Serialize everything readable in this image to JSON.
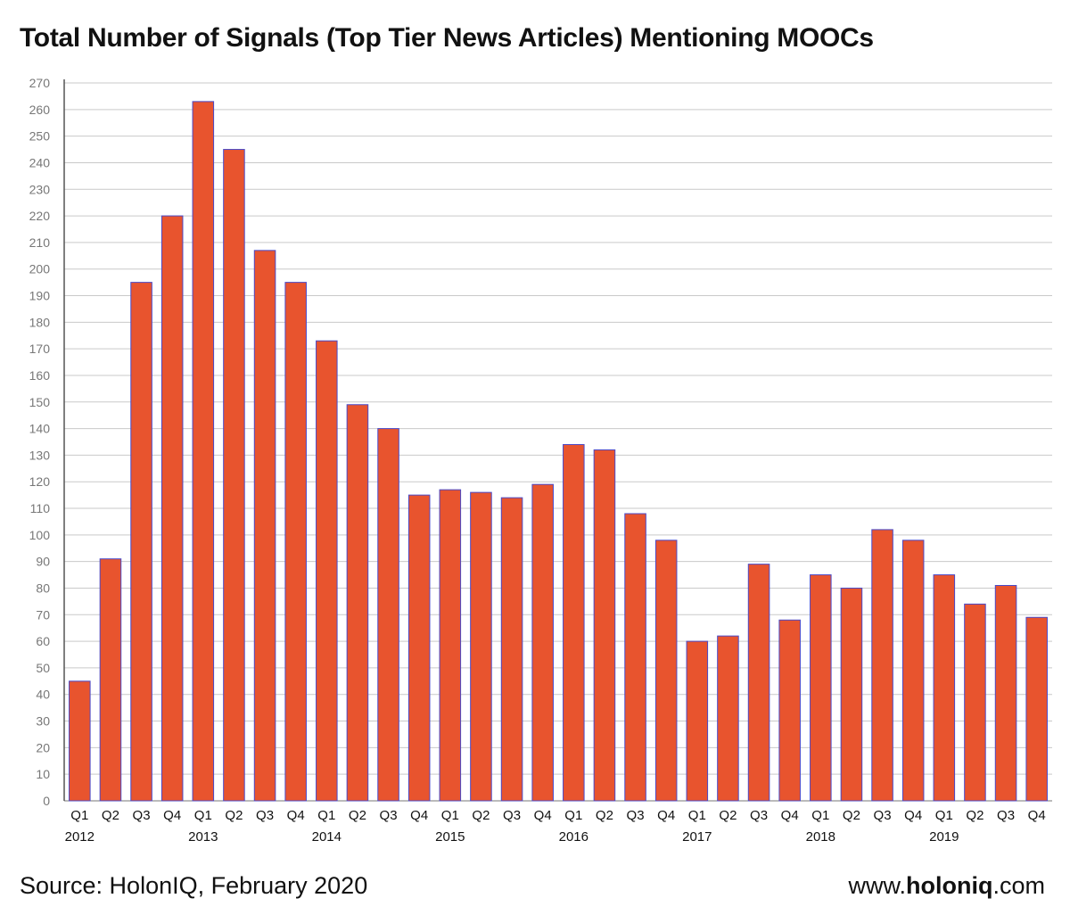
{
  "chart_data": {
    "type": "bar",
    "title": "Total Number of Signals (Top Tier News Articles) Mentioning MOOCs",
    "xlabel": "",
    "ylabel": "",
    "ylim": [
      0,
      270
    ],
    "ytick_step": 10,
    "grid": true,
    "bar_color": "#E8542E",
    "bar_edge_color": "#4a4ac8",
    "categories": [
      "Q1",
      "Q2",
      "Q3",
      "Q4",
      "Q1",
      "Q2",
      "Q3",
      "Q4",
      "Q1",
      "Q2",
      "Q3",
      "Q4",
      "Q1",
      "Q2",
      "Q3",
      "Q4",
      "Q1",
      "Q2",
      "Q3",
      "Q4",
      "Q1",
      "Q2",
      "Q3",
      "Q4",
      "Q1",
      "Q2",
      "Q3",
      "Q4",
      "Q1",
      "Q2",
      "Q3",
      "Q4"
    ],
    "years": [
      "2012",
      "2013",
      "2014",
      "2015",
      "2016",
      "2017",
      "2018",
      "2019"
    ],
    "values": [
      45,
      91,
      195,
      220,
      263,
      245,
      207,
      195,
      173,
      149,
      140,
      115,
      117,
      116,
      114,
      119,
      134,
      132,
      108,
      98,
      60,
      62,
      89,
      68,
      85,
      80,
      102,
      98,
      85,
      74,
      81,
      69
    ]
  },
  "footer": {
    "source": "Source: HolonIQ, February 2020",
    "website_prefix": "www.",
    "website_bold": "holoniq",
    "website_suffix": ".com"
  }
}
